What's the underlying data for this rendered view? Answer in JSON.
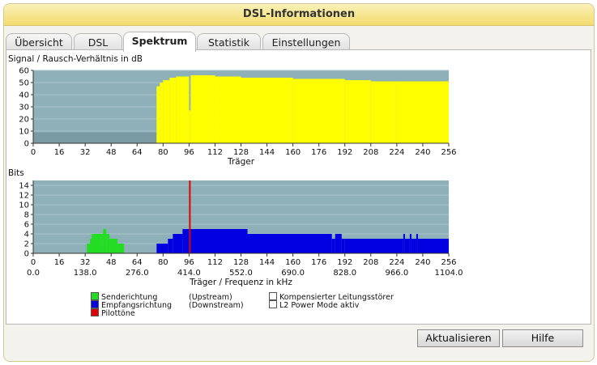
{
  "window": {
    "title": "DSL-Informationen"
  },
  "tabs": [
    {
      "label": "Übersicht",
      "active": false
    },
    {
      "label": "DSL",
      "active": false
    },
    {
      "label": "Spektrum",
      "active": true
    },
    {
      "label": "Statistik",
      "active": false
    },
    {
      "label": "Einstellungen",
      "active": false
    }
  ],
  "buttons": {
    "refresh": "Aktualisieren",
    "help": "Hilfe"
  },
  "colors": {
    "snr_fill": "#ffff00",
    "upstream": "#22dd22",
    "downstream": "#0000e0",
    "pilot": "#e00000",
    "plot_bg": "#8eb0b9",
    "gridline": "#a9c3c9"
  },
  "legend": {
    "upstream": {
      "label": "Senderichtung",
      "note": "(Upstream)"
    },
    "downstream": {
      "label": "Empfangsrichtung",
      "note": "(Downstream)"
    },
    "pilot": {
      "label": "Pilottöne"
    },
    "crosstalk": {
      "label": "Kompensierter Leitungsstörer"
    },
    "l2": {
      "label": "L2 Power Mode aktiv"
    }
  },
  "chart_data": [
    {
      "type": "bar",
      "title": "Signal / Rausch-Verhältnis in dB",
      "xlabel": "Träger",
      "xlim": [
        0,
        256
      ],
      "ylim": [
        0,
        60
      ],
      "xticks": [
        0,
        16,
        32,
        48,
        64,
        80,
        96,
        112,
        128,
        144,
        160,
        176,
        192,
        208,
        224,
        240,
        256
      ],
      "yticks": [
        0,
        10,
        20,
        30,
        40,
        50,
        60
      ],
      "grid": true,
      "series": [
        {
          "color": "#ffff00",
          "segments": [
            {
              "from": 0,
              "to": 76,
              "value": 0
            },
            {
              "from": 76,
              "to": 78,
              "value": 47
            },
            {
              "from": 78,
              "to": 80,
              "value": 50
            },
            {
              "from": 80,
              "to": 84,
              "value": 52
            },
            {
              "from": 84,
              "to": 88,
              "value": 54
            },
            {
              "from": 88,
              "to": 96,
              "value": 55
            },
            {
              "from": 96,
              "to": 97,
              "value": 27
            },
            {
              "from": 97,
              "to": 112,
              "value": 56
            },
            {
              "from": 112,
              "to": 128,
              "value": 55
            },
            {
              "from": 128,
              "to": 160,
              "value": 54
            },
            {
              "from": 160,
              "to": 192,
              "value": 53
            },
            {
              "from": 192,
              "to": 208,
              "value": 52
            },
            {
              "from": 208,
              "to": 224,
              "value": 51
            },
            {
              "from": 224,
              "to": 256,
              "value": 51
            }
          ]
        }
      ]
    },
    {
      "type": "bar",
      "title": "Bits",
      "xlabel": "Träger / Frequenz in kHz",
      "xlim": [
        0,
        256
      ],
      "ylim": [
        0,
        15
      ],
      "xticks": [
        0,
        16,
        32,
        48,
        64,
        80,
        96,
        112,
        128,
        144,
        160,
        176,
        192,
        208,
        224,
        240,
        256
      ],
      "freq_ticks": [
        {
          "carrier": 0,
          "label": "0.0"
        },
        {
          "carrier": 32,
          "label": "138.0"
        },
        {
          "carrier": 64,
          "label": "276.0"
        },
        {
          "carrier": 96,
          "label": "414.0"
        },
        {
          "carrier": 128,
          "label": "552.0"
        },
        {
          "carrier": 160,
          "label": "690.0"
        },
        {
          "carrier": 192,
          "label": "828.0"
        },
        {
          "carrier": 224,
          "label": "966.0"
        },
        {
          "carrier": 256,
          "label": "1104.0"
        }
      ],
      "yticks": [
        0,
        2,
        4,
        6,
        8,
        10,
        12,
        14
      ],
      "grid": true,
      "series": [
        {
          "name": "Senderichtung",
          "color": "#22dd22",
          "segments": [
            {
              "from": 33,
              "to": 35,
              "value": 2
            },
            {
              "from": 35,
              "to": 36,
              "value": 3
            },
            {
              "from": 36,
              "to": 42,
              "value": 4
            },
            {
              "from": 42,
              "to": 43,
              "value": 4
            },
            {
              "from": 43,
              "to": 45,
              "value": 5
            },
            {
              "from": 45,
              "to": 47,
              "value": 4
            },
            {
              "from": 47,
              "to": 52,
              "value": 3
            },
            {
              "from": 52,
              "to": 56,
              "value": 2
            }
          ]
        },
        {
          "name": "Empfangsrichtung",
          "color": "#0000e0",
          "segments": [
            {
              "from": 62,
              "to": 76,
              "value": 0
            },
            {
              "from": 76,
              "to": 83,
              "value": 2
            },
            {
              "from": 83,
              "to": 86,
              "value": 3
            },
            {
              "from": 86,
              "to": 92,
              "value": 4
            },
            {
              "from": 92,
              "to": 132,
              "value": 5
            },
            {
              "from": 132,
              "to": 184,
              "value": 4
            },
            {
              "from": 184,
              "to": 186,
              "value": 3
            },
            {
              "from": 186,
              "to": 190,
              "value": 4
            },
            {
              "from": 190,
              "to": 192,
              "value": 3
            },
            {
              "from": 192,
              "to": 228,
              "value": 3
            },
            {
              "from": 228,
              "to": 229,
              "value": 4
            },
            {
              "from": 229,
              "to": 232,
              "value": 3
            },
            {
              "from": 232,
              "to": 233,
              "value": 4
            },
            {
              "from": 233,
              "to": 236,
              "value": 3
            },
            {
              "from": 236,
              "to": 237,
              "value": 4
            },
            {
              "from": 237,
              "to": 256,
              "value": 3
            }
          ]
        },
        {
          "name": "Pilottöne",
          "color": "#e00000",
          "segments": [
            {
              "from": 96,
              "to": 97,
              "value": 15
            }
          ]
        }
      ]
    }
  ]
}
